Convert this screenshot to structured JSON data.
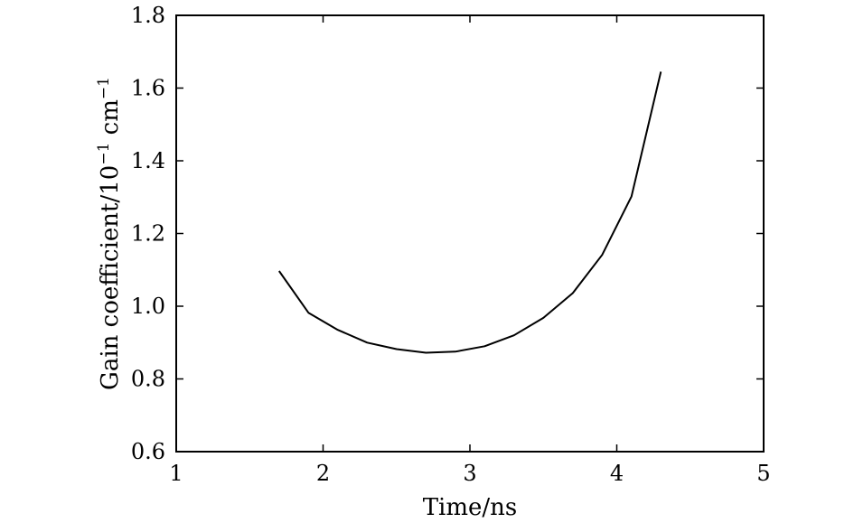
{
  "chart_data": {
    "type": "line",
    "title": "",
    "xlabel": "Time/ns",
    "ylabel": {
      "base": "Gain coefficient/10",
      "exp1": "−1",
      "mid": " cm",
      "exp2": "−1"
    },
    "xlim": [
      1,
      5
    ],
    "ylim": [
      0.6,
      1.8
    ],
    "xticks": [
      1,
      2,
      3,
      4,
      5
    ],
    "xtick_labels": [
      "1",
      "2",
      "3",
      "4",
      "5"
    ],
    "yticks": [
      0.6,
      0.8,
      1.0,
      1.2,
      1.4,
      1.6,
      1.8
    ],
    "ytick_labels": [
      "0.6",
      "0.8",
      "1.0",
      "1.2",
      "1.4",
      "1.6",
      "1.8"
    ],
    "grid": false,
    "series": [
      {
        "x": [
          1.7,
          1.9,
          2.1,
          2.3,
          2.5,
          2.7,
          2.9,
          3.1,
          3.3,
          3.5,
          3.7,
          3.9,
          4.1,
          4.3
        ],
        "y": [
          1.097,
          0.982,
          0.935,
          0.9,
          0.882,
          0.872,
          0.875,
          0.89,
          0.92,
          0.968,
          1.036,
          1.141,
          1.302,
          1.645
        ]
      }
    ]
  }
}
